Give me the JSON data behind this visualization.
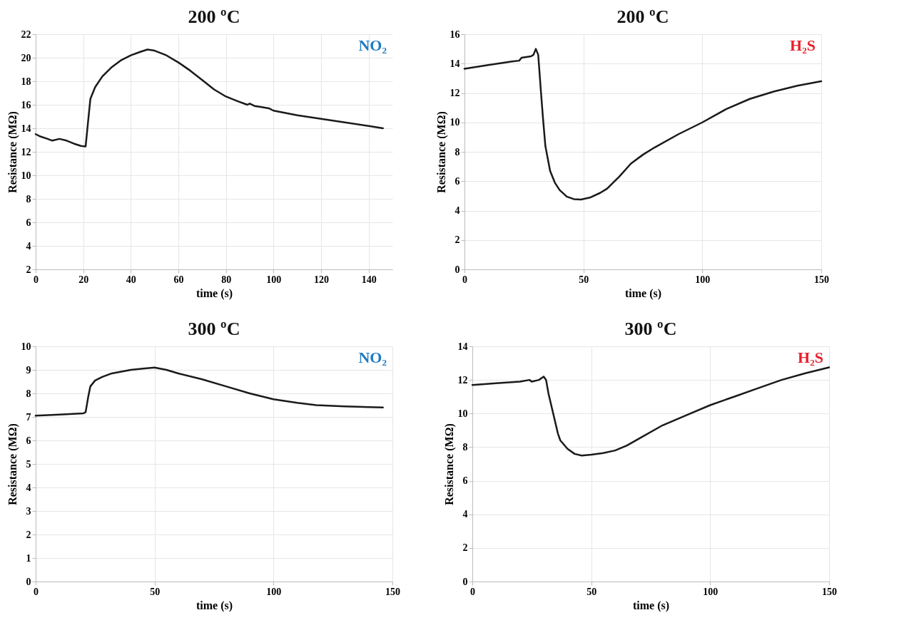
{
  "chart_data": [
    {
      "type": "line",
      "title": "200 ºC",
      "annotations": [
        "NO₂"
      ],
      "xlabel": "time (s)",
      "ylabel": "Resistance (MΩ)",
      "xlim": [
        0,
        150
      ],
      "xticks": [
        0,
        20,
        40,
        60,
        80,
        100,
        120,
        140
      ],
      "ylim": [
        2,
        22
      ],
      "yticks": [
        2,
        4,
        6,
        8,
        10,
        12,
        14,
        16,
        18,
        20,
        22
      ],
      "grid": true,
      "marker": "none",
      "line_style": "solid",
      "series": [
        {
          "color": "#1a1a1a",
          "x": [
            0,
            2,
            5,
            7,
            10,
            13,
            16,
            19,
            21,
            22,
            23,
            25,
            28,
            32,
            36,
            40,
            44,
            47,
            50,
            55,
            60,
            65,
            70,
            75,
            80,
            85,
            89,
            90,
            92,
            95,
            98,
            100,
            105,
            110,
            120,
            130,
            140,
            146
          ],
          "values": [
            13.5,
            13.3,
            13.1,
            12.95,
            13.1,
            12.95,
            12.7,
            12.5,
            12.45,
            14.5,
            16.5,
            17.5,
            18.4,
            19.2,
            19.8,
            20.2,
            20.5,
            20.7,
            20.6,
            20.2,
            19.6,
            18.9,
            18.1,
            17.3,
            16.7,
            16.3,
            16.0,
            16.1,
            15.9,
            15.8,
            15.7,
            15.5,
            15.3,
            15.1,
            14.8,
            14.5,
            14.2,
            14.0
          ]
        }
      ]
    },
    {
      "type": "line",
      "title": "200 ºC",
      "annotations": [
        "H₂S"
      ],
      "xlabel": "time (s)",
      "ylabel": "Resistance (MΩ)",
      "xlim": [
        0,
        150
      ],
      "xticks": [
        0,
        50,
        100,
        150
      ],
      "ylim": [
        0,
        16
      ],
      "yticks": [
        0,
        2,
        4,
        6,
        8,
        10,
        12,
        14,
        16
      ],
      "grid": true,
      "marker": "none",
      "line_style": "solid",
      "series": [
        {
          "color": "#1a1a1a",
          "x": [
            0,
            10,
            20,
            23,
            24,
            28,
            29,
            30,
            31,
            32,
            33,
            34,
            36,
            38,
            40,
            43,
            46,
            49,
            53,
            57,
            60,
            65,
            70,
            75,
            80,
            90,
            100,
            110,
            120,
            130,
            140,
            150
          ],
          "values": [
            13.65,
            13.9,
            14.15,
            14.2,
            14.4,
            14.5,
            14.6,
            15.0,
            14.6,
            12.4,
            10.3,
            8.4,
            6.7,
            5.9,
            5.4,
            4.95,
            4.78,
            4.75,
            4.9,
            5.2,
            5.5,
            6.3,
            7.2,
            7.8,
            8.3,
            9.2,
            10.0,
            10.9,
            11.6,
            12.1,
            12.5,
            12.8
          ]
        }
      ]
    },
    {
      "type": "line",
      "title": "300 ºC",
      "annotations": [
        "NO₂"
      ],
      "xlabel": "time (s)",
      "ylabel": "Resistance (MΩ)",
      "xlim": [
        0,
        150
      ],
      "xticks": [
        0,
        50,
        100,
        150
      ],
      "ylim": [
        0,
        10
      ],
      "yticks": [
        0,
        1,
        2,
        3,
        4,
        5,
        6,
        7,
        8,
        9,
        10
      ],
      "grid": true,
      "marker": "none",
      "line_style": "solid",
      "series": [
        {
          "color": "#1a1a1a",
          "x": [
            0,
            10,
            20,
            21,
            22,
            23,
            25,
            28,
            32,
            40,
            45,
            50,
            55,
            60,
            70,
            80,
            90,
            100,
            110,
            118,
            130,
            146
          ],
          "values": [
            7.05,
            7.1,
            7.15,
            7.2,
            7.8,
            8.3,
            8.55,
            8.7,
            8.85,
            9.0,
            9.05,
            9.1,
            9.0,
            8.85,
            8.6,
            8.3,
            8.0,
            7.75,
            7.6,
            7.5,
            7.45,
            7.4
          ]
        }
      ]
    },
    {
      "type": "line",
      "title": "300 ºC",
      "annotations": [
        "H₂S"
      ],
      "xlabel": "time (s)",
      "ylabel": "Resistance (MΩ)",
      "xlim": [
        0,
        150
      ],
      "xticks": [
        0,
        50,
        100,
        150
      ],
      "ylim": [
        0,
        14
      ],
      "yticks": [
        0,
        2,
        4,
        6,
        8,
        10,
        12,
        14
      ],
      "grid": true,
      "marker": "none",
      "line_style": "solid",
      "series": [
        {
          "color": "#1a1a1a",
          "x": [
            0,
            10,
            20,
            24,
            25,
            28,
            29,
            30,
            31,
            32,
            34,
            36,
            37,
            40,
            43,
            46,
            50,
            55,
            60,
            65,
            70,
            80,
            90,
            100,
            110,
            120,
            130,
            140,
            150
          ],
          "values": [
            11.7,
            11.8,
            11.9,
            12.0,
            11.9,
            12.0,
            12.1,
            12.2,
            12.0,
            11.2,
            10.0,
            8.8,
            8.4,
            7.9,
            7.6,
            7.5,
            7.55,
            7.65,
            7.8,
            8.1,
            8.5,
            9.3,
            9.9,
            10.5,
            11.0,
            11.5,
            12.0,
            12.4,
            12.75
          ]
        }
      ]
    }
  ]
}
